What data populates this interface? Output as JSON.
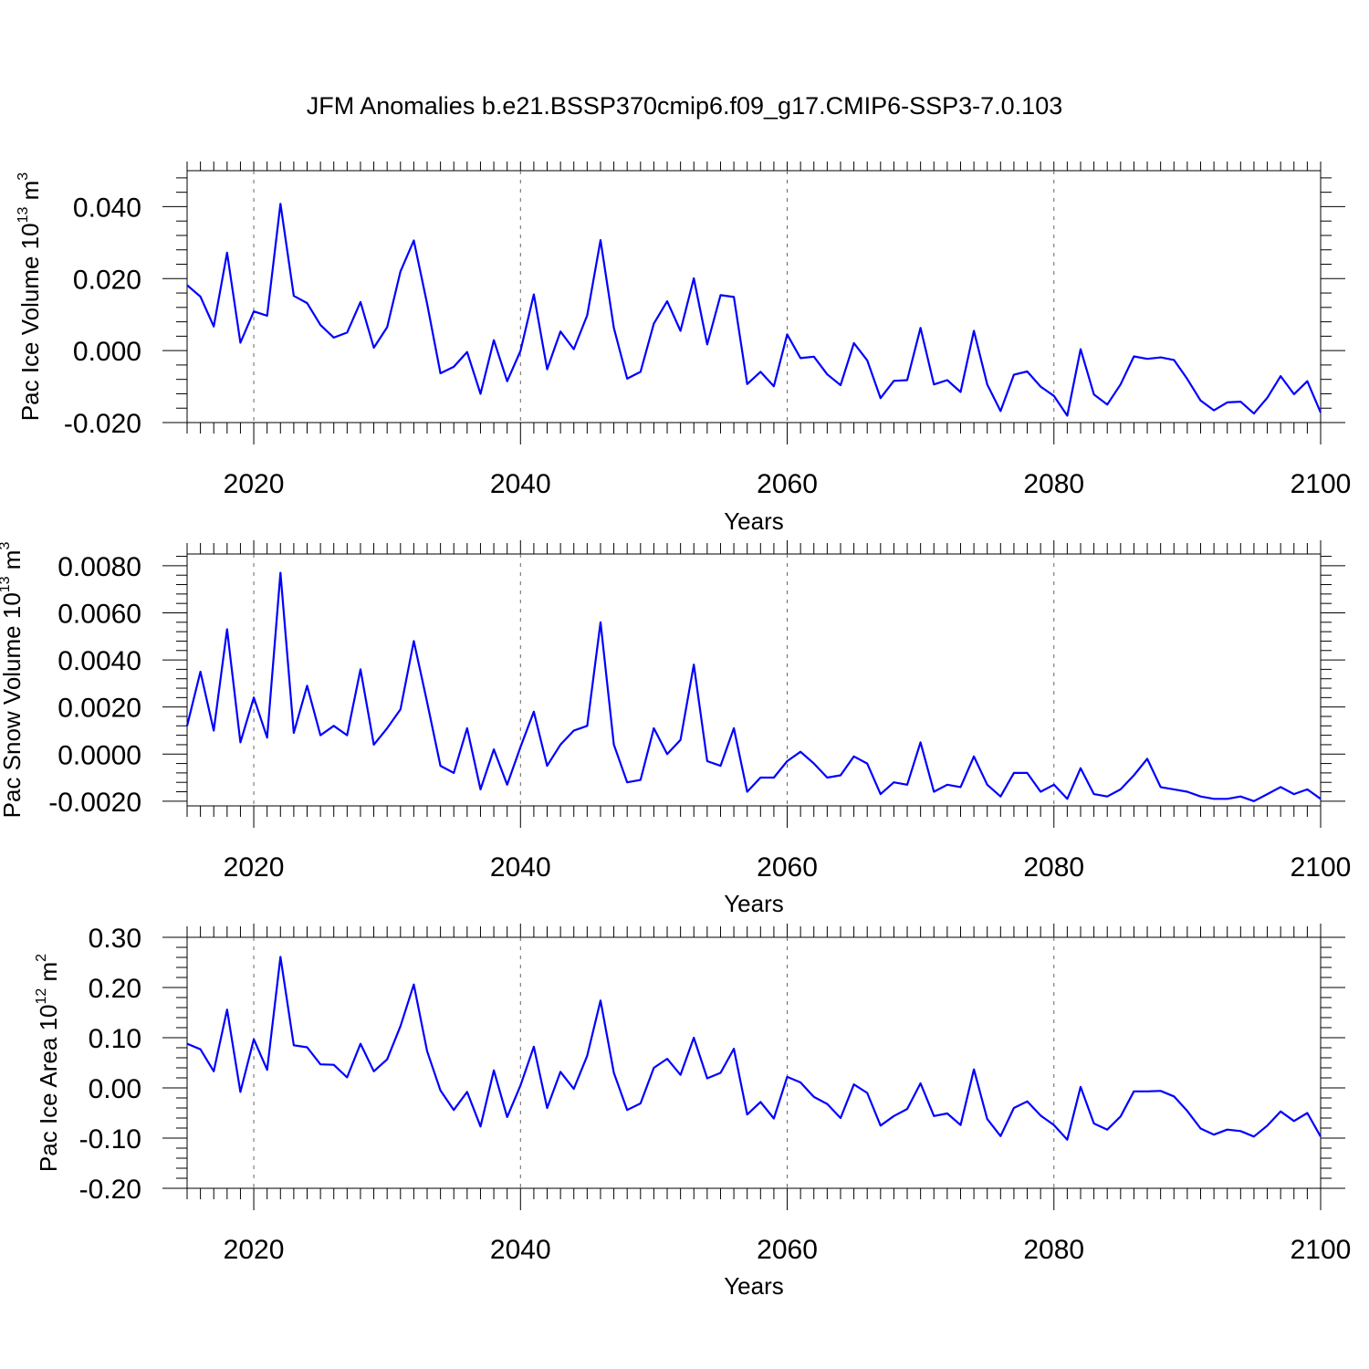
{
  "title": "JFM Anomalies b.e21.BSSP370cmip6.f09_g17.CMIP6-SSP3-7.0.103",
  "line_color": "#0000ff",
  "chart_data": [
    {
      "type": "line",
      "ylabel_main": "Pac Ice Volume 10",
      "ylabel_exp": "13",
      "ylabel_unit": " m",
      "ylabel_unit_exp": "3",
      "xlabel": "Years",
      "xlim": [
        2015,
        2100
      ],
      "ylim": [
        -0.02,
        0.05
      ],
      "x_ticks": [
        2020,
        2040,
        2060,
        2080,
        2100
      ],
      "x_tick_labels": [
        "2020",
        "2040",
        "2060",
        "2080",
        "2100"
      ],
      "y_ticks": [
        -0.02,
        0.0,
        0.02,
        0.04
      ],
      "y_tick_labels": [
        "-0.020",
        "0.000",
        "0.020",
        "0.040"
      ],
      "series": [
        {
          "x": [
            2015,
            2016,
            2017,
            2018,
            2019,
            2020,
            2021,
            2022,
            2023,
            2024,
            2025,
            2026,
            2027,
            2028,
            2029,
            2030,
            2031,
            2032,
            2033,
            2034,
            2035,
            2036,
            2037,
            2038,
            2039,
            2040,
            2041,
            2042,
            2043,
            2044,
            2045,
            2046,
            2047,
            2048,
            2049,
            2050,
            2051,
            2052,
            2053,
            2054,
            2055,
            2056,
            2057,
            2058,
            2059,
            2060,
            2061,
            2062,
            2063,
            2064,
            2065,
            2066,
            2067,
            2068,
            2069,
            2070,
            2071,
            2072,
            2073,
            2074,
            2075,
            2076,
            2077,
            2078,
            2079,
            2080,
            2081,
            2082,
            2083,
            2084,
            2085,
            2086,
            2087,
            2088,
            2089,
            2090,
            2091,
            2092,
            2093,
            2094,
            2095,
            2096,
            2097,
            2098,
            2099,
            2100
          ],
          "values": [
            0.0182,
            0.015,
            0.0067,
            0.0272,
            0.0022,
            0.0109,
            0.0097,
            0.0408,
            0.0152,
            0.0132,
            0.0071,
            0.0036,
            0.005,
            0.0135,
            0.0008,
            0.0065,
            0.022,
            0.0306,
            0.013,
            -0.0063,
            -0.0045,
            -0.0004,
            -0.012,
            0.0029,
            -0.0085,
            -0.0001,
            0.0156,
            -0.0052,
            0.0053,
            0.0004,
            0.0098,
            0.0307,
            0.0063,
            -0.0078,
            -0.0059,
            0.0075,
            0.0137,
            0.0055,
            0.0201,
            0.0017,
            0.0154,
            0.0149,
            -0.0093,
            -0.0059,
            -0.0099,
            0.0045,
            -0.0021,
            -0.0017,
            -0.0066,
            -0.0096,
            0.0021,
            -0.0027,
            -0.0132,
            -0.0084,
            -0.0082,
            0.0063,
            -0.0094,
            -0.0082,
            -0.0115,
            0.0055,
            -0.0094,
            -0.0168,
            -0.0067,
            -0.0058,
            -0.01,
            -0.0126,
            -0.0181,
            0.0004,
            -0.0122,
            -0.015,
            -0.0094,
            -0.0016,
            -0.0023,
            -0.0019,
            -0.0026,
            -0.0079,
            -0.0139,
            -0.0166,
            -0.0144,
            -0.0142,
            -0.0175,
            -0.0131,
            -0.0071,
            -0.0121,
            -0.0085,
            -0.0172
          ]
        }
      ]
    },
    {
      "type": "line",
      "ylabel_main": "Pac Snow Volume 10",
      "ylabel_exp": "13",
      "ylabel_unit": " m",
      "ylabel_unit_exp": "3",
      "xlabel": "Years",
      "xlim": [
        2015,
        2100
      ],
      "ylim": [
        -0.0022,
        0.0085
      ],
      "x_ticks": [
        2020,
        2040,
        2060,
        2080,
        2100
      ],
      "x_tick_labels": [
        "2020",
        "2040",
        "2060",
        "2080",
        "2100"
      ],
      "y_ticks": [
        -0.002,
        0.0,
        0.002,
        0.004,
        0.006,
        0.008
      ],
      "y_tick_labels": [
        "-0.0020",
        "0.0000",
        "0.0020",
        "0.0040",
        "0.0060",
        "0.0080"
      ],
      "series": [
        {
          "x": [
            2015,
            2016,
            2017,
            2018,
            2019,
            2020,
            2021,
            2022,
            2023,
            2024,
            2025,
            2026,
            2027,
            2028,
            2029,
            2030,
            2031,
            2032,
            2033,
            2034,
            2035,
            2036,
            2037,
            2038,
            2039,
            2040,
            2041,
            2042,
            2043,
            2044,
            2045,
            2046,
            2047,
            2048,
            2049,
            2050,
            2051,
            2052,
            2053,
            2054,
            2055,
            2056,
            2057,
            2058,
            2059,
            2060,
            2061,
            2062,
            2063,
            2064,
            2065,
            2066,
            2067,
            2068,
            2069,
            2070,
            2071,
            2072,
            2073,
            2074,
            2075,
            2076,
            2077,
            2078,
            2079,
            2080,
            2081,
            2082,
            2083,
            2084,
            2085,
            2086,
            2087,
            2088,
            2089,
            2090,
            2091,
            2092,
            2093,
            2094,
            2095,
            2096,
            2097,
            2098,
            2099,
            2100
          ],
          "values": [
            0.0012,
            0.0035,
            0.001,
            0.0053,
            0.0005,
            0.0024,
            0.0007,
            0.0077,
            0.0009,
            0.0029,
            0.0008,
            0.0012,
            0.0008,
            0.0036,
            0.0004,
            0.0011,
            0.0019,
            0.0048,
            0.0022,
            -0.0005,
            -0.0008,
            0.0011,
            -0.0015,
            0.0002,
            -0.0013,
            0.0003,
            0.0018,
            -0.0005,
            0.0004,
            0.001,
            0.0012,
            0.0056,
            0.0004,
            -0.0012,
            -0.0011,
            0.0011,
            0.0,
            0.0006,
            0.0038,
            -0.0003,
            -0.0005,
            0.0011,
            -0.0016,
            -0.001,
            -0.001,
            -0.0003,
            0.0001,
            -0.0004,
            -0.001,
            -0.0009,
            -0.0001,
            -0.0004,
            -0.0017,
            -0.0012,
            -0.0013,
            0.0005,
            -0.0016,
            -0.0013,
            -0.0014,
            -0.0001,
            -0.0013,
            -0.0018,
            -0.0008,
            -0.0008,
            -0.0016,
            -0.0013,
            -0.0019,
            -0.0006,
            -0.0017,
            -0.0018,
            -0.0015,
            -0.0009,
            -0.0002,
            -0.0014,
            -0.0015,
            -0.0016,
            -0.0018,
            -0.0019,
            -0.0019,
            -0.0018,
            -0.002,
            -0.0017,
            -0.0014,
            -0.0017,
            -0.0015,
            -0.0019
          ]
        }
      ]
    },
    {
      "type": "line",
      "ylabel_main": "Pac Ice Area 10",
      "ylabel_exp": "12",
      "ylabel_unit": " m",
      "ylabel_unit_exp": "2",
      "xlabel": "Years",
      "xlim": [
        2015,
        2100
      ],
      "ylim": [
        -0.2,
        0.3
      ],
      "x_ticks": [
        2020,
        2040,
        2060,
        2080,
        2100
      ],
      "x_tick_labels": [
        "2020",
        "2040",
        "2060",
        "2080",
        "2100"
      ],
      "y_ticks": [
        -0.2,
        -0.1,
        0.0,
        0.1,
        0.2,
        0.3
      ],
      "y_tick_labels": [
        "-0.20",
        "-0.10",
        "0.00",
        "0.10",
        "0.20",
        "0.30"
      ],
      "series": [
        {
          "x": [
            2015,
            2016,
            2017,
            2018,
            2019,
            2020,
            2021,
            2022,
            2023,
            2024,
            2025,
            2026,
            2027,
            2028,
            2029,
            2030,
            2031,
            2032,
            2033,
            2034,
            2035,
            2036,
            2037,
            2038,
            2039,
            2040,
            2041,
            2042,
            2043,
            2044,
            2045,
            2046,
            2047,
            2048,
            2049,
            2050,
            2051,
            2052,
            2053,
            2054,
            2055,
            2056,
            2057,
            2058,
            2059,
            2060,
            2061,
            2062,
            2063,
            2064,
            2065,
            2066,
            2067,
            2068,
            2069,
            2070,
            2071,
            2072,
            2073,
            2074,
            2075,
            2076,
            2077,
            2078,
            2079,
            2080,
            2081,
            2082,
            2083,
            2084,
            2085,
            2086,
            2087,
            2088,
            2089,
            2090,
            2091,
            2092,
            2093,
            2094,
            2095,
            2096,
            2097,
            2098,
            2099,
            2100
          ],
          "values": [
            0.088,
            0.077,
            0.033,
            0.156,
            -0.008,
            0.097,
            0.036,
            0.261,
            0.085,
            0.081,
            0.047,
            0.046,
            0.021,
            0.088,
            0.033,
            0.057,
            0.123,
            0.206,
            0.073,
            -0.005,
            -0.044,
            -0.008,
            -0.077,
            0.035,
            -0.058,
            0.005,
            0.082,
            -0.04,
            0.032,
            -0.002,
            0.064,
            0.174,
            0.03,
            -0.044,
            -0.031,
            0.04,
            0.058,
            0.026,
            0.1,
            0.019,
            0.03,
            0.078,
            -0.053,
            -0.028,
            -0.061,
            0.022,
            0.011,
            -0.018,
            -0.032,
            -0.06,
            0.007,
            -0.01,
            -0.075,
            -0.056,
            -0.042,
            0.009,
            -0.056,
            -0.051,
            -0.074,
            0.037,
            -0.062,
            -0.096,
            -0.04,
            -0.027,
            -0.055,
            -0.074,
            -0.103,
            0.002,
            -0.071,
            -0.083,
            -0.057,
            -0.007,
            -0.007,
            -0.006,
            -0.017,
            -0.046,
            -0.081,
            -0.093,
            -0.083,
            -0.086,
            -0.097,
            -0.075,
            -0.047,
            -0.066,
            -0.05,
            -0.097
          ]
        }
      ]
    }
  ]
}
